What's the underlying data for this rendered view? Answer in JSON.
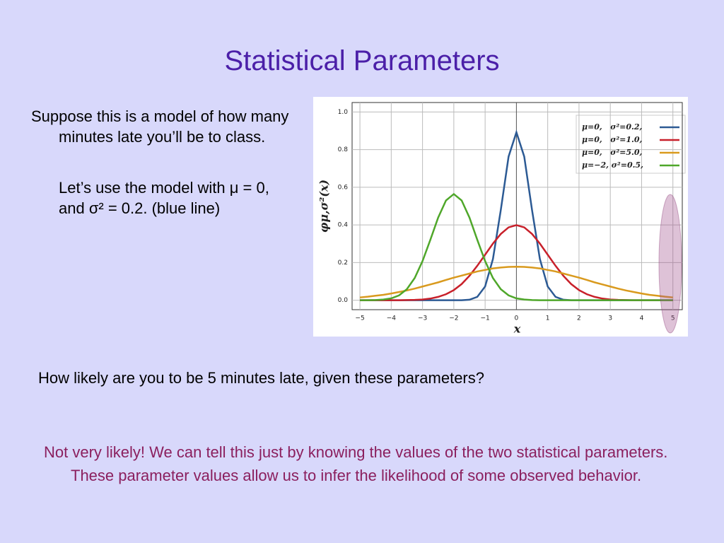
{
  "title": "Statistical Parameters",
  "bullets": [
    "Suppose this is a model of how many minutes late you’ll be to class.",
    "Let’s use the model with μ = 0, and σ² = 0.2. (blue line)"
  ],
  "question": "How likely are you to be 5 minutes late, given these parameters?",
  "answer": "Not very likely!   We can tell this just by knowing the values of the two statistical parameters.  These parameter values allow us to infer the likelihood of some observed behavior.",
  "chart_data": {
    "type": "line",
    "x_label": "x",
    "y_label": "φμ,σ²(x)",
    "x": [
      -5,
      -4.75,
      -4.5,
      -4.25,
      -4,
      -3.75,
      -3.5,
      -3.25,
      -3,
      -2.75,
      -2.5,
      -2.25,
      -2,
      -1.75,
      -1.5,
      -1.25,
      -1,
      -0.75,
      -0.5,
      -0.25,
      0,
      0.25,
      0.5,
      0.75,
      1,
      1.25,
      1.5,
      1.75,
      2,
      2.25,
      2.5,
      2.75,
      3,
      3.25,
      3.5,
      3.75,
      4,
      4.25,
      4.5,
      4.75,
      5
    ],
    "series": [
      {
        "name": "μ=0,   σ²=0.2,",
        "color": "#2c5a94",
        "values": [
          0,
          0,
          0,
          0,
          0,
          0,
          0,
          0,
          0,
          0,
          0,
          0,
          0,
          0,
          0.003,
          0.018,
          0.073,
          0.219,
          0.478,
          0.763,
          0.892,
          0.763,
          0.478,
          0.219,
          0.073,
          0.018,
          0.003,
          0,
          0,
          0,
          0,
          0,
          0,
          0,
          0,
          0,
          0,
          0,
          0,
          0,
          0
        ]
      },
      {
        "name": "μ=0,   σ²=1.0,",
        "color": "#c8202a",
        "values": [
          0,
          0,
          0,
          0,
          0,
          0,
          0.001,
          0.002,
          0.004,
          0.009,
          0.018,
          0.032,
          0.054,
          0.086,
          0.13,
          0.183,
          0.242,
          0.301,
          0.352,
          0.387,
          0.399,
          0.387,
          0.352,
          0.301,
          0.242,
          0.183,
          0.13,
          0.086,
          0.054,
          0.032,
          0.018,
          0.009,
          0.004,
          0.002,
          0.001,
          0,
          0,
          0,
          0,
          0,
          0
        ]
      },
      {
        "name": "μ=0,   σ²=5.0,",
        "color": "#d99a1e",
        "values": [
          0.015,
          0.019,
          0.024,
          0.029,
          0.036,
          0.044,
          0.052,
          0.062,
          0.073,
          0.084,
          0.095,
          0.108,
          0.12,
          0.131,
          0.142,
          0.153,
          0.161,
          0.169,
          0.174,
          0.177,
          0.178,
          0.177,
          0.174,
          0.169,
          0.161,
          0.153,
          0.142,
          0.131,
          0.12,
          0.108,
          0.095,
          0.084,
          0.073,
          0.062,
          0.052,
          0.044,
          0.036,
          0.029,
          0.024,
          0.019,
          0.015
        ]
      },
      {
        "name": "μ=−2, σ²=0.5,",
        "color": "#4fa72a",
        "values": [
          0,
          0,
          0.001,
          0.004,
          0.01,
          0.026,
          0.059,
          0.118,
          0.208,
          0.321,
          0.439,
          0.53,
          0.564,
          0.53,
          0.439,
          0.321,
          0.208,
          0.118,
          0.059,
          0.026,
          0.01,
          0.004,
          0.001,
          0,
          0,
          0,
          0,
          0,
          0,
          0,
          0,
          0,
          0,
          0,
          0,
          0,
          0,
          0,
          0,
          0,
          0
        ]
      }
    ],
    "xlim": [
      -5.25,
      5.3
    ],
    "ylim": [
      -0.05,
      1.05
    ],
    "xticks": [
      {
        "value": -5,
        "label": "−5"
      },
      {
        "value": -4,
        "label": "−4"
      },
      {
        "value": -3,
        "label": "−3"
      },
      {
        "value": -2,
        "label": "−2"
      },
      {
        "value": -1,
        "label": "−1"
      },
      0,
      1,
      2,
      3,
      4,
      5
    ],
    "yticks": [
      {
        "value": 0,
        "label": "0.0"
      },
      0.2,
      0.4,
      0.6,
      0.8,
      {
        "value": 1,
        "label": "1.0"
      }
    ],
    "grid": true,
    "legend": "upper right"
  }
}
